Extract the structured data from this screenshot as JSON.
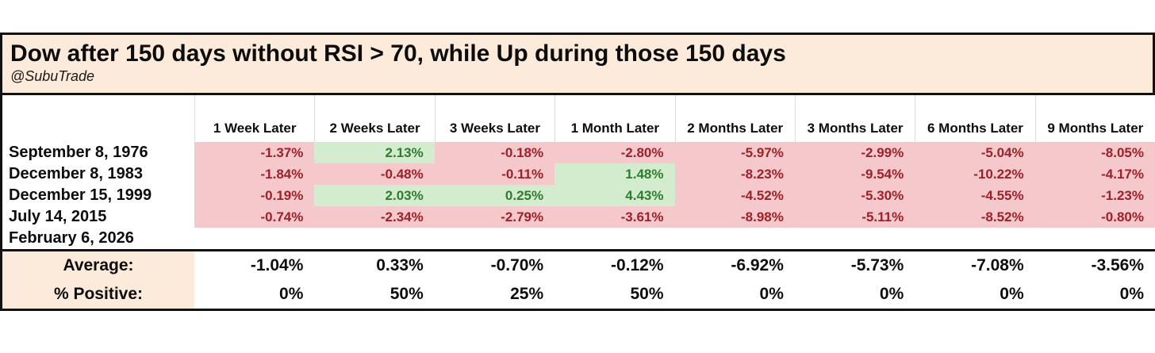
{
  "title": "Dow after 150 days without RSI > 70, while Up during those 150 days",
  "subtitle": "@SubuTrade",
  "colors": {
    "title_background": "#fceada",
    "negative_cell_background": "#f5c8cb",
    "negative_text": "#9c2128",
    "positive_cell_background": "#d3ecce",
    "positive_text": "#2e7d2f",
    "summary_label_background": "#fceada",
    "border": "#111111"
  },
  "chart_data": {
    "type": "table",
    "title": "Dow after 150 days without RSI > 70, while Up during those 150 days",
    "columns": [
      "1 Week Later",
      "2 Weeks Later",
      "3 Weeks Later",
      "1 Month Later",
      "2 Months Later",
      "3 Months Later",
      "6 Months Later",
      "9 Months Later"
    ],
    "rows": [
      {
        "label": "September 8, 1976",
        "values": [
          "-1.37%",
          "2.13%",
          "-0.18%",
          "-2.80%",
          "-5.97%",
          "-2.99%",
          "-5.04%",
          "-8.05%"
        ]
      },
      {
        "label": "December 8, 1983",
        "values": [
          "-1.84%",
          "-0.48%",
          "-0.11%",
          "1.48%",
          "-8.23%",
          "-9.54%",
          "-10.22%",
          "-4.17%"
        ]
      },
      {
        "label": "December 15, 1999",
        "values": [
          "-0.19%",
          "2.03%",
          "0.25%",
          "4.43%",
          "-4.52%",
          "-5.30%",
          "-4.55%",
          "-1.23%"
        ]
      },
      {
        "label": "July 14, 2015",
        "values": [
          "-0.74%",
          "-2.34%",
          "-2.79%",
          "-3.61%",
          "-8.98%",
          "-5.11%",
          "-8.52%",
          "-0.80%"
        ]
      },
      {
        "label": "February 6, 2026",
        "values": [
          "",
          "",
          "",
          "",
          "",
          "",
          "",
          ""
        ]
      }
    ],
    "summary": [
      {
        "label": "Average:",
        "values": [
          "-1.04%",
          "0.33%",
          "-0.70%",
          "-0.12%",
          "-6.92%",
          "-5.73%",
          "-7.08%",
          "-3.56%"
        ]
      },
      {
        "label": "% Positive:",
        "values": [
          "0%",
          "50%",
          "25%",
          "50%",
          "0%",
          "0%",
          "0%",
          "0%"
        ]
      }
    ]
  }
}
